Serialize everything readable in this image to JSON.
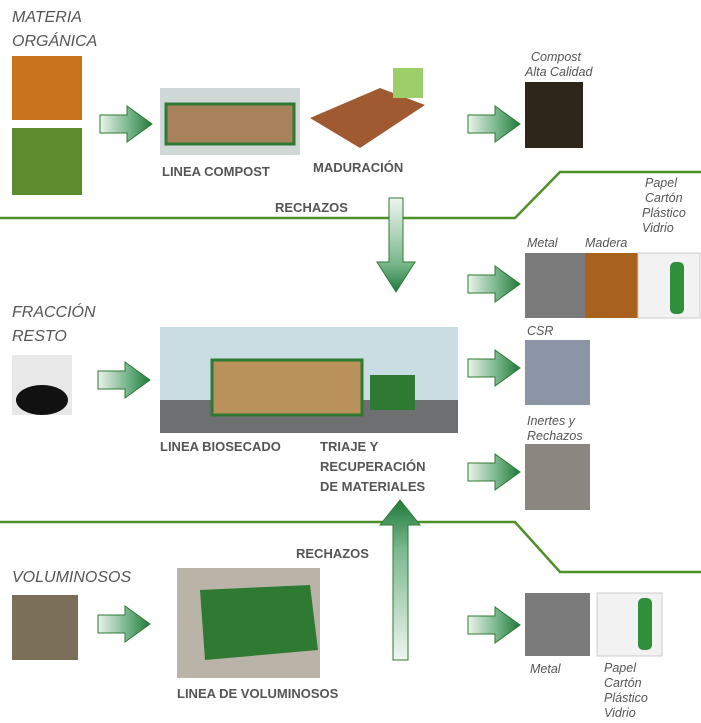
{
  "organic": {
    "title": [
      "MATERIA",
      "ORGÁNICA"
    ],
    "process": "LINEA COMPOST",
    "maturation": "MADURACIÓN",
    "output": [
      "Compost",
      "Alta Calidad"
    ]
  },
  "rejects_top": "RECHAZOS",
  "rest": {
    "title": [
      "FRACCIÓN",
      "RESTO"
    ],
    "process": "LINEA BIOSECADO",
    "triage": [
      "TRIAJE Y",
      "RECUPERACIÓN",
      "DE MATERIALES"
    ],
    "outputs": {
      "metal": "Metal",
      "wood": "Madera",
      "recyclables": [
        "Papel",
        "Cartón",
        "Plástico",
        "Vidrio"
      ],
      "csr": "CSR",
      "inert": [
        "Inertes y",
        "Rechazos"
      ]
    }
  },
  "rejects_bottom": "RECHAZOS",
  "bulky": {
    "title": "VOLUMINOSOS",
    "process": "LINEA DE VOLUMINOSOS",
    "outputs": {
      "metal": "Metal",
      "recyclables": [
        "Papel",
        "Cartón",
        "Plástico",
        "Vidrio"
      ]
    }
  }
}
